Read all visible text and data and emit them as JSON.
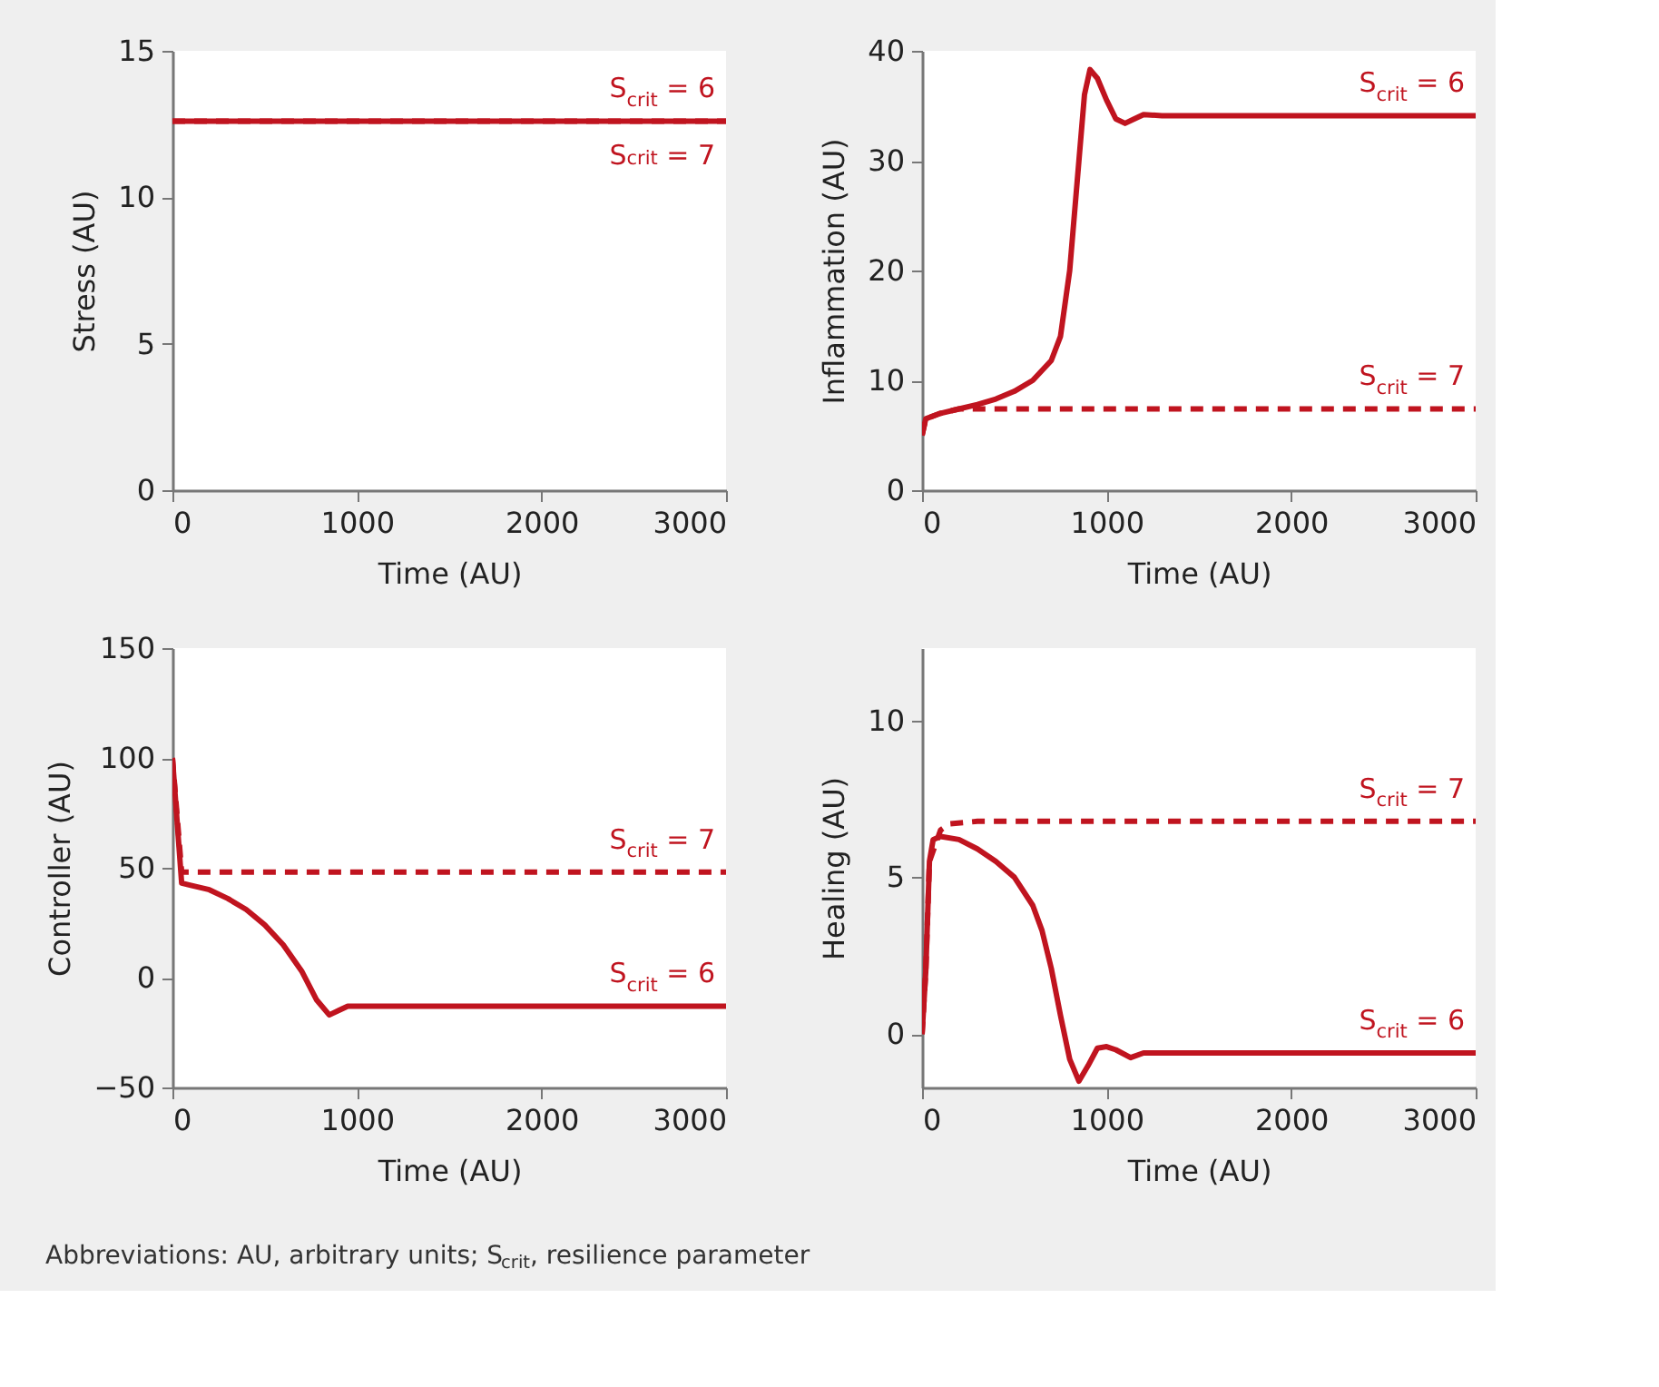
{
  "chart_data": [
    {
      "type": "line",
      "xlabel": "Time (AU)",
      "ylabel": "Stress (AU)",
      "xlim": [
        0,
        3000
      ],
      "xticks": [
        0,
        1000,
        2000,
        3000
      ],
      "ylim": [
        0,
        15
      ],
      "yticks": [
        0,
        5,
        10,
        15
      ],
      "grid": false,
      "legend": false,
      "series": [
        {
          "name": "S$_{crit}$ = 6",
          "color": "#c0141f",
          "line_style": "solid",
          "x": [
            0,
            3000
          ],
          "values": [
            12.6,
            12.6
          ]
        },
        {
          "name": "S$_{crit}$ = 7",
          "color": "#c0141f",
          "line_style": "dashed",
          "x": [
            0,
            3000
          ],
          "values": [
            12.6,
            12.6
          ]
        }
      ]
    },
    {
      "type": "line",
      "xlabel": "Time (AU)",
      "ylabel": "Inflammation (AU)",
      "xlim": [
        0,
        3000
      ],
      "xticks": [
        0,
        1000,
        2000,
        3000
      ],
      "ylim": [
        0,
        40
      ],
      "yticks": [
        0,
        10,
        20,
        30,
        40
      ],
      "grid": false,
      "legend": false,
      "series": [
        {
          "name": "S$_{crit}$ = 6",
          "color": "#c0141f",
          "line_style": "solid",
          "x": [
            0,
            20,
            100,
            200,
            300,
            400,
            500,
            600,
            700,
            750,
            800,
            850,
            880,
            910,
            950,
            1000,
            1050,
            1100,
            1150,
            1200,
            1300,
            3000
          ],
          "values": [
            5,
            6.5,
            7,
            7.4,
            7.8,
            8.3,
            9,
            10,
            11.8,
            14,
            20,
            30,
            36,
            38.3,
            37.5,
            35.5,
            33.8,
            33.4,
            33.8,
            34.2,
            34.1,
            34.1
          ]
        },
        {
          "name": "S$_{crit}$ = 7",
          "color": "#c0141f",
          "line_style": "dashed",
          "x": [
            0,
            20,
            100,
            200,
            3000
          ],
          "values": [
            5,
            6.5,
            7,
            7.4,
            7.4
          ]
        }
      ]
    },
    {
      "type": "line",
      "xlabel": "Time (AU)",
      "ylabel": "Controller (AU)",
      "xlim": [
        0,
        3000
      ],
      "xticks": [
        0,
        1000,
        2000,
        3000
      ],
      "ylim": [
        -50,
        150
      ],
      "yticks": [
        {
          "value": -50,
          "label": "−50"
        },
        0,
        50,
        100,
        150
      ],
      "grid": false,
      "legend": false,
      "series": [
        {
          "name": "S$_{crit}$ = 7",
          "color": "#c0141f",
          "line_style": "dashed",
          "x": [
            0,
            50,
            3000
          ],
          "values": [
            100,
            48,
            48
          ]
        },
        {
          "name": "S$_{crit}$ = 6",
          "color": "#c0141f",
          "line_style": "solid",
          "x": [
            0,
            50,
            100,
            200,
            300,
            400,
            500,
            600,
            700,
            780,
            850,
            900,
            950,
            3000
          ],
          "values": [
            100,
            43,
            42,
            40,
            36,
            31,
            24,
            15,
            3,
            -10,
            -17,
            -15,
            -13,
            -13
          ]
        }
      ]
    },
    {
      "type": "line",
      "xlabel": "Time (AU)",
      "ylabel": "Healing (AU)",
      "xlim": [
        0,
        3000
      ],
      "xticks": [
        0,
        1000,
        2000,
        3000
      ],
      "ylim": [
        -1.7,
        12.3
      ],
      "yticks": [
        0,
        5,
        10
      ],
      "grid": false,
      "legend": false,
      "annotations": [
        "Abbreviations: AU, arbitrary units; S$_{crit}$, resilience parameter"
      ],
      "series": [
        {
          "name": "S$_{crit}$ = 7",
          "color": "#c0141f",
          "line_style": "dashed",
          "x": [
            0,
            20,
            40,
            100,
            150,
            300,
            3000
          ],
          "values": [
            0,
            2,
            5.5,
            6.5,
            6.7,
            6.78,
            6.78
          ]
        },
        {
          "name": "S$_{crit}$ = 6",
          "color": "#c0141f",
          "line_style": "solid",
          "x": [
            0,
            20,
            40,
            60,
            100,
            200,
            300,
            400,
            500,
            600,
            650,
            700,
            750,
            800,
            850,
            900,
            950,
            1000,
            1050,
            1130,
            1200,
            3000
          ],
          "values": [
            0,
            2,
            5.5,
            6.2,
            6.3,
            6.2,
            5.9,
            5.5,
            5.0,
            4.1,
            3.3,
            2.1,
            0.6,
            -0.8,
            -1.5,
            -1.0,
            -0.45,
            -0.4,
            -0.5,
            -0.75,
            -0.6,
            -0.6
          ]
        }
      ]
    }
  ]
}
